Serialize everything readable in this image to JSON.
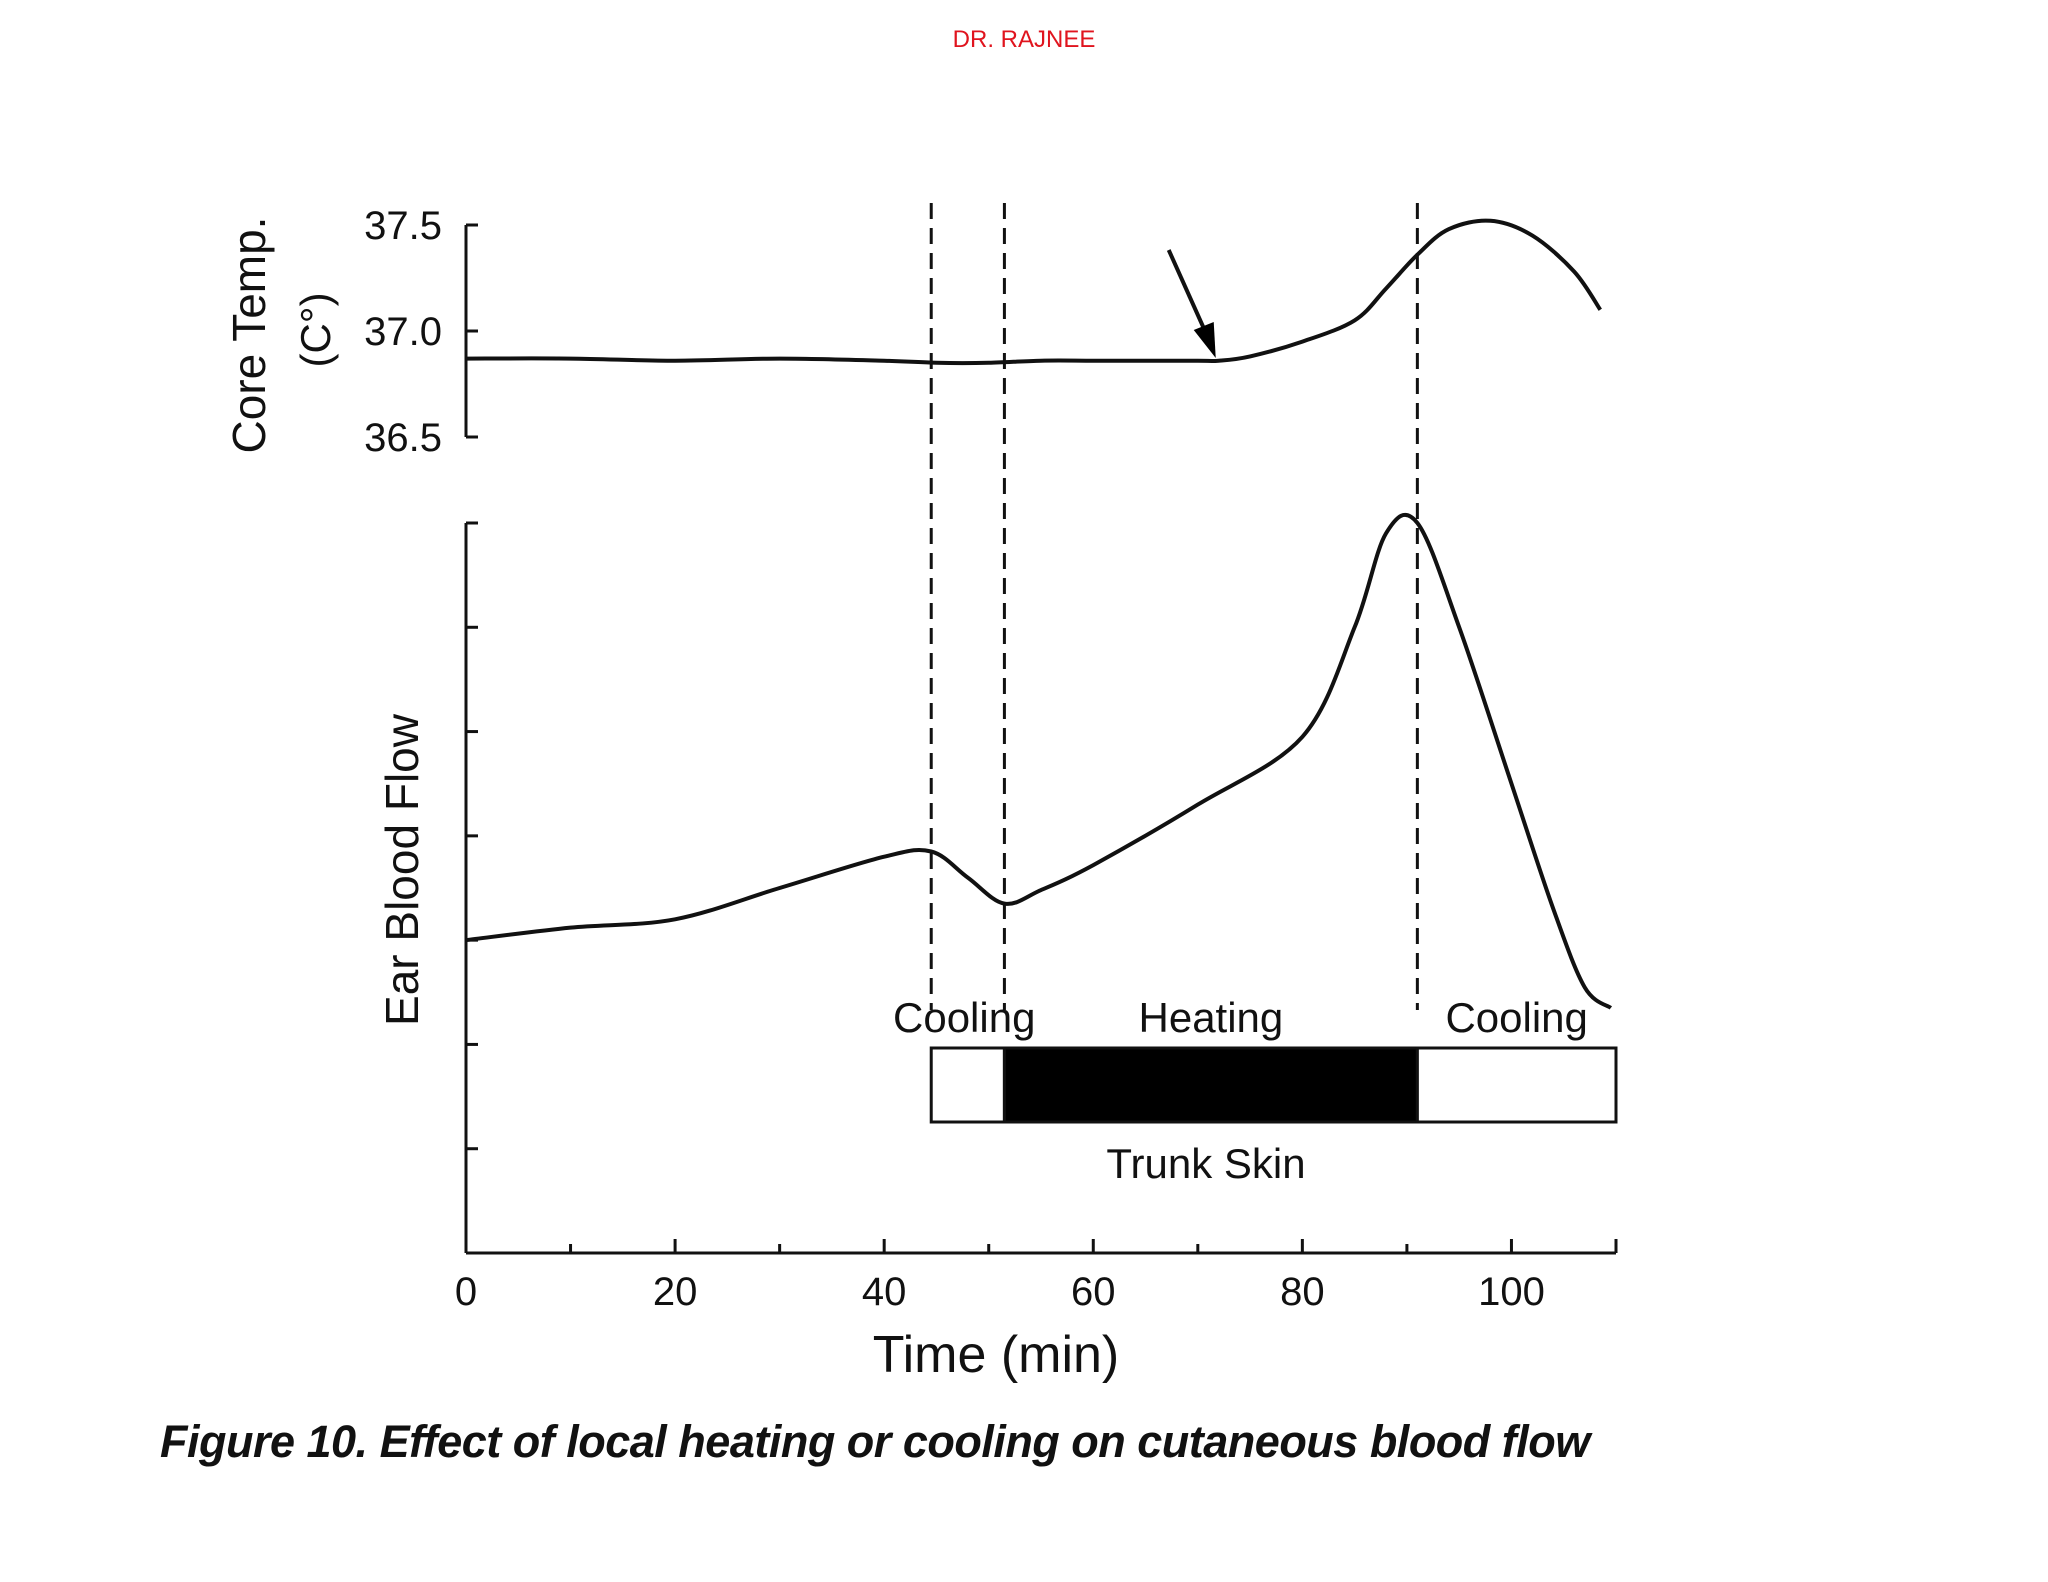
{
  "header": {
    "author": "DR. RAJNEE"
  },
  "caption": "Figure 10. Effect of local heating or cooling on cutaneous blood flow",
  "chart_data": {
    "type": "line",
    "xlabel": "Time (min)",
    "x_ticks": [
      "0",
      "20",
      "40",
      "60",
      "80",
      "100"
    ],
    "xlim": [
      0,
      110
    ],
    "panels": [
      {
        "name": "core_temp",
        "ylabel_lines": [
          "Core Temp.",
          "(C°)"
        ],
        "y_ticks": [
          "37.5",
          "37.0",
          "36.5"
        ],
        "ylim": [
          36.5,
          37.5
        ],
        "series": [
          {
            "name": "Core Temp",
            "x": [
              0,
              10,
              20,
              30,
              40,
              45,
              50,
              55,
              60,
              65,
              70,
              72,
              75,
              80,
              85,
              88,
              91,
              94,
              98,
              102,
              106,
              108.5
            ],
            "y": [
              36.87,
              36.87,
              36.86,
              36.87,
              36.86,
              36.85,
              36.85,
              36.86,
              36.86,
              36.86,
              36.86,
              36.86,
              36.88,
              36.95,
              37.05,
              37.2,
              37.36,
              37.48,
              37.52,
              37.45,
              37.28,
              37.1
            ]
          }
        ]
      },
      {
        "name": "ear_blood_flow",
        "ylabel": "Ear Blood Flow",
        "y_tick_count": 8,
        "ylim": [
          0,
          7
        ],
        "series": [
          {
            "name": "Ear Blood Flow",
            "x": [
              0,
              10,
              20,
              30,
              40,
              44.5,
              48,
              51.5,
              55,
              60,
              70,
              80,
              85,
              88,
              91,
              95,
              100,
              104,
              107,
              109.5
            ],
            "y": [
              3.0,
              3.12,
              3.2,
              3.5,
              3.8,
              3.85,
              3.6,
              3.35,
              3.48,
              3.72,
              4.3,
              4.95,
              6.0,
              6.9,
              7.0,
              6.0,
              4.5,
              3.3,
              2.55,
              2.35
            ]
          }
        ]
      }
    ],
    "dividers_x": [
      44.5,
      51.5,
      91
    ],
    "annotations": [
      {
        "type": "arrow",
        "text": "",
        "points_to_x": 72
      }
    ],
    "trunk_skin": {
      "label": "Trunk Skin",
      "segments": [
        {
          "label": "Cooling",
          "start": 44.5,
          "end": 51.5,
          "fill": "#ffffff"
        },
        {
          "label": "Heating",
          "start": 51.5,
          "end": 91,
          "fill": "#000000"
        },
        {
          "label": "Cooling",
          "start": 91,
          "end": 110,
          "fill": "#ffffff"
        }
      ]
    }
  }
}
